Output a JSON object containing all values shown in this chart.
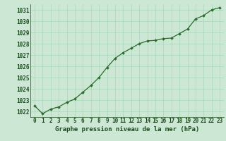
{
  "x": [
    0,
    1,
    2,
    3,
    4,
    5,
    6,
    7,
    8,
    9,
    10,
    11,
    12,
    13,
    14,
    15,
    16,
    17,
    18,
    19,
    20,
    21,
    22,
    23
  ],
  "y": [
    1022.5,
    1021.8,
    1022.2,
    1022.4,
    1022.8,
    1023.1,
    1023.7,
    1024.3,
    1025.0,
    1025.9,
    1026.7,
    1027.2,
    1027.6,
    1028.0,
    1028.25,
    1028.3,
    1028.45,
    1028.5,
    1028.9,
    1029.3,
    1030.2,
    1030.5,
    1031.0,
    1031.2
  ],
  "ylim": [
    1021.5,
    1031.5
  ],
  "yticks": [
    1022,
    1023,
    1024,
    1025,
    1026,
    1027,
    1028,
    1029,
    1030,
    1031
  ],
  "xlim": [
    -0.5,
    23.5
  ],
  "xticks": [
    0,
    1,
    2,
    3,
    4,
    5,
    6,
    7,
    8,
    9,
    10,
    11,
    12,
    13,
    14,
    15,
    16,
    17,
    18,
    19,
    20,
    21,
    22,
    23
  ],
  "xlabel": "Graphe pression niveau de la mer (hPa)",
  "line_color": "#2d6a2d",
  "marker": "D",
  "marker_size": 2.0,
  "bg_color": "#cce8d4",
  "grid_color": "#aad4bb",
  "tick_color": "#1a4a1a",
  "label_color": "#1a4a1a",
  "xlabel_fontsize": 6.5,
  "tick_fontsize": 5.5,
  "linewidth": 0.9
}
